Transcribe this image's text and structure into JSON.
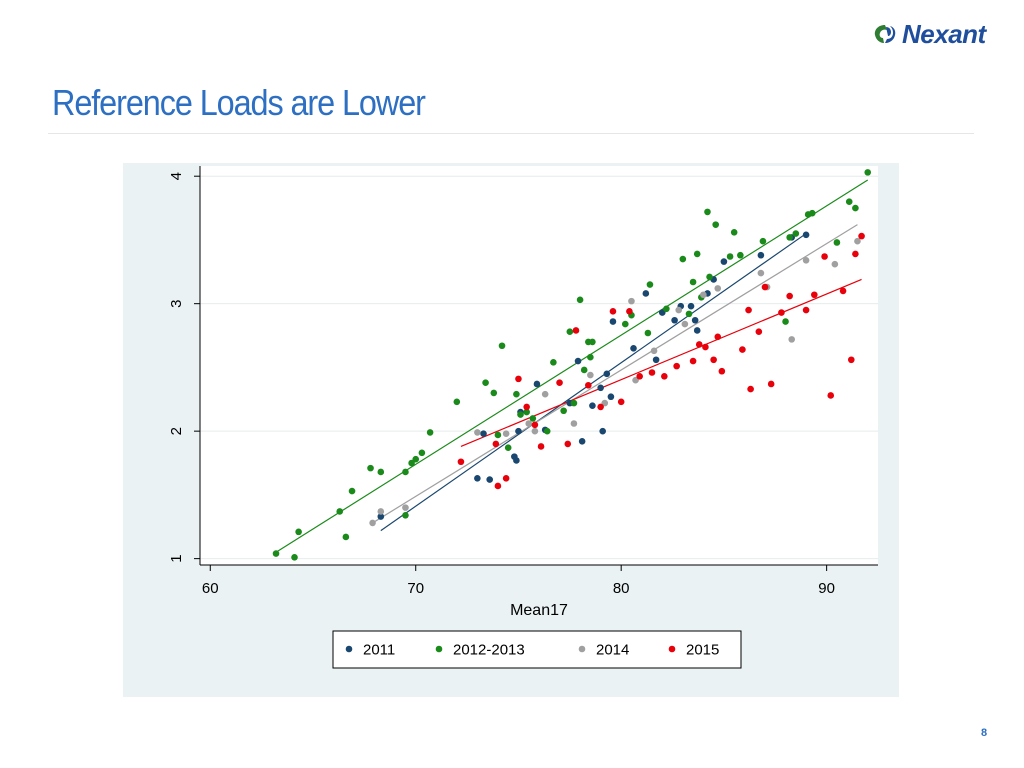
{
  "header": {
    "logo_text": "Nexant",
    "title": "Reference Loads are Lower"
  },
  "footer": {
    "page_number": "8"
  },
  "colors": {
    "title": "#2d6fc2",
    "logo": "#1f4e9c",
    "panel_background": "#eaf2f3",
    "plot_background": "#ffffff",
    "grid": "#e6eced"
  },
  "chart_data": {
    "type": "scatter",
    "title": "",
    "xlabel": "Mean17",
    "ylabel": "",
    "xlim": [
      59.5,
      92.5
    ],
    "ylim": [
      0.95,
      4.08
    ],
    "x_ticks": [
      60,
      70,
      80,
      90
    ],
    "y_ticks": [
      1,
      2,
      3,
      4
    ],
    "grid": true,
    "legend_position": "bottom",
    "series": [
      {
        "name": "2011",
        "color": "#1a476f",
        "fit_line": [
          [
            68.3,
            1.22
          ],
          [
            89.0,
            3.55
          ]
        ],
        "points": [
          [
            68.3,
            1.33
          ],
          [
            73.0,
            1.63
          ],
          [
            73.3,
            1.98
          ],
          [
            73.6,
            1.62
          ],
          [
            74.8,
            1.8
          ],
          [
            74.9,
            1.77
          ],
          [
            75.0,
            2.0
          ],
          [
            75.1,
            2.15
          ],
          [
            75.9,
            2.37
          ],
          [
            76.3,
            2.01
          ],
          [
            77.5,
            2.22
          ],
          [
            77.9,
            2.55
          ],
          [
            78.1,
            1.92
          ],
          [
            78.6,
            2.2
          ],
          [
            79.0,
            2.34
          ],
          [
            79.1,
            2.0
          ],
          [
            79.3,
            2.45
          ],
          [
            79.5,
            2.27
          ],
          [
            79.6,
            2.86
          ],
          [
            80.6,
            2.65
          ],
          [
            81.2,
            3.08
          ],
          [
            81.7,
            2.56
          ],
          [
            82.0,
            2.93
          ],
          [
            82.6,
            2.87
          ],
          [
            82.9,
            2.98
          ],
          [
            83.4,
            2.98
          ],
          [
            83.6,
            2.87
          ],
          [
            83.7,
            2.79
          ],
          [
            84.2,
            3.08
          ],
          [
            84.5,
            3.19
          ],
          [
            85.0,
            3.33
          ],
          [
            86.8,
            3.38
          ],
          [
            88.3,
            3.52
          ],
          [
            89.0,
            3.54
          ]
        ]
      },
      {
        "name": "2012-2013",
        "color": "#1a8a1a",
        "fit_line": [
          [
            63.2,
            1.05
          ],
          [
            92.0,
            3.97
          ]
        ],
        "points": [
          [
            63.2,
            1.04
          ],
          [
            64.1,
            1.01
          ],
          [
            64.3,
            1.21
          ],
          [
            66.3,
            1.37
          ],
          [
            66.6,
            1.17
          ],
          [
            66.9,
            1.53
          ],
          [
            67.8,
            1.71
          ],
          [
            68.3,
            1.68
          ],
          [
            69.5,
            1.68
          ],
          [
            69.8,
            1.75
          ],
          [
            70.0,
            1.78
          ],
          [
            70.3,
            1.83
          ],
          [
            70.7,
            1.99
          ],
          [
            69.5,
            1.34
          ],
          [
            72.0,
            2.23
          ],
          [
            73.4,
            2.38
          ],
          [
            73.8,
            2.3
          ],
          [
            74.0,
            1.97
          ],
          [
            74.2,
            2.67
          ],
          [
            74.5,
            1.87
          ],
          [
            74.9,
            2.29
          ],
          [
            75.1,
            2.13
          ],
          [
            75.4,
            2.15
          ],
          [
            75.7,
            2.1
          ],
          [
            76.4,
            2.0
          ],
          [
            76.7,
            2.54
          ],
          [
            77.2,
            2.16
          ],
          [
            77.5,
            2.78
          ],
          [
            77.7,
            2.22
          ],
          [
            78.0,
            3.03
          ],
          [
            78.2,
            2.48
          ],
          [
            78.4,
            2.7
          ],
          [
            78.5,
            2.58
          ],
          [
            78.6,
            2.7
          ],
          [
            80.2,
            2.84
          ],
          [
            80.5,
            2.91
          ],
          [
            81.3,
            2.77
          ],
          [
            81.4,
            3.15
          ],
          [
            82.2,
            2.96
          ],
          [
            83.0,
            3.35
          ],
          [
            83.3,
            2.92
          ],
          [
            83.5,
            3.17
          ],
          [
            83.7,
            3.39
          ],
          [
            83.9,
            3.05
          ],
          [
            84.2,
            3.72
          ],
          [
            84.3,
            3.21
          ],
          [
            84.6,
            3.62
          ],
          [
            85.3,
            3.37
          ],
          [
            85.5,
            3.56
          ],
          [
            85.8,
            3.38
          ],
          [
            86.9,
            3.49
          ],
          [
            88.0,
            2.86
          ],
          [
            88.2,
            3.52
          ],
          [
            88.5,
            3.55
          ],
          [
            89.1,
            3.7
          ],
          [
            89.3,
            3.71
          ],
          [
            90.5,
            3.48
          ],
          [
            91.1,
            3.8
          ],
          [
            91.4,
            3.75
          ],
          [
            92.0,
            4.03
          ]
        ]
      },
      {
        "name": "2014",
        "color": "#a0a0a0",
        "fit_line": [
          [
            67.9,
            1.28
          ],
          [
            91.5,
            3.62
          ]
        ],
        "points": [
          [
            67.9,
            1.28
          ],
          [
            68.3,
            1.37
          ],
          [
            69.5,
            1.4
          ],
          [
            73.0,
            1.99
          ],
          [
            74.4,
            1.98
          ],
          [
            75.5,
            2.06
          ],
          [
            75.8,
            2.0
          ],
          [
            76.3,
            2.29
          ],
          [
            77.7,
            2.06
          ],
          [
            78.5,
            2.44
          ],
          [
            79.2,
            2.22
          ],
          [
            80.5,
            3.02
          ],
          [
            80.7,
            2.4
          ],
          [
            81.6,
            2.63
          ],
          [
            82.8,
            2.95
          ],
          [
            83.1,
            2.84
          ],
          [
            84.0,
            3.07
          ],
          [
            84.7,
            3.12
          ],
          [
            86.8,
            3.24
          ],
          [
            87.1,
            3.13
          ],
          [
            88.3,
            2.72
          ],
          [
            89.0,
            3.34
          ],
          [
            90.4,
            3.31
          ],
          [
            91.5,
            3.49
          ]
        ]
      },
      {
        "name": "2015",
        "color": "#e8000b",
        "fit_line": [
          [
            72.2,
            1.88
          ],
          [
            91.7,
            3.19
          ]
        ],
        "points": [
          [
            72.2,
            1.76
          ],
          [
            73.9,
            1.9
          ],
          [
            74.0,
            1.57
          ],
          [
            74.4,
            1.63
          ],
          [
            75.0,
            2.41
          ],
          [
            75.4,
            2.19
          ],
          [
            75.8,
            2.05
          ],
          [
            76.1,
            1.88
          ],
          [
            77.0,
            2.38
          ],
          [
            77.4,
            1.9
          ],
          [
            77.8,
            2.79
          ],
          [
            78.4,
            2.36
          ],
          [
            79.0,
            2.19
          ],
          [
            79.6,
            2.94
          ],
          [
            80.0,
            2.23
          ],
          [
            80.4,
            2.94
          ],
          [
            80.9,
            2.43
          ],
          [
            81.5,
            2.46
          ],
          [
            82.1,
            2.43
          ],
          [
            82.7,
            2.51
          ],
          [
            83.5,
            2.55
          ],
          [
            83.8,
            2.68
          ],
          [
            84.1,
            2.66
          ],
          [
            84.5,
            2.56
          ],
          [
            84.7,
            2.74
          ],
          [
            84.9,
            2.47
          ],
          [
            85.9,
            2.64
          ],
          [
            86.2,
            2.95
          ],
          [
            86.3,
            2.33
          ],
          [
            86.7,
            2.78
          ],
          [
            87.0,
            3.13
          ],
          [
            87.3,
            2.37
          ],
          [
            87.8,
            2.93
          ],
          [
            88.2,
            3.06
          ],
          [
            89.0,
            2.95
          ],
          [
            89.4,
            3.07
          ],
          [
            89.9,
            3.37
          ],
          [
            90.2,
            2.28
          ],
          [
            90.8,
            3.1
          ],
          [
            91.2,
            2.56
          ],
          [
            91.7,
            3.53
          ],
          [
            91.4,
            3.39
          ]
        ]
      }
    ]
  }
}
